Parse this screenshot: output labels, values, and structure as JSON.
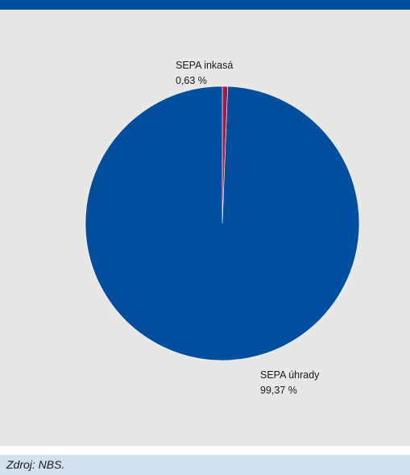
{
  "chart_data": {
    "type": "pie",
    "slices": [
      {
        "label": "SEPA úhrady",
        "percent_text": "99,37 %",
        "value": 99.37,
        "color": "#004f9e"
      },
      {
        "label": "SEPA inkasá",
        "percent_text": "0,63 %",
        "value": 0.63,
        "color": "#a41a48"
      }
    ]
  },
  "footer": {
    "source": "Zdroj: NBS."
  },
  "colors": {
    "header": "#004f9e",
    "panel": "#e7e7e6",
    "footer": "#d2e1f0"
  }
}
